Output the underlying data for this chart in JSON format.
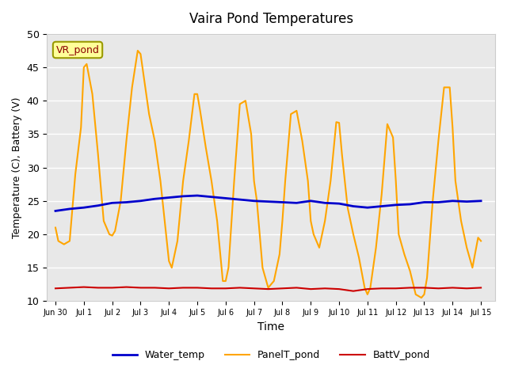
{
  "title": "Vaira Pond Temperatures",
  "xlabel": "Time",
  "ylabel": "Temperature (C), Battery (V)",
  "ylim": [
    10,
    50
  ],
  "xlim_days": 15.5,
  "background_color": "#e8e8e8",
  "legend_label": "VR_pond",
  "series": {
    "Water_temp": {
      "color": "#0000cc",
      "linewidth": 2.0
    },
    "PanelT_pond": {
      "color": "#FFA500",
      "linewidth": 1.5
    },
    "BattV_pond": {
      "color": "#cc0000",
      "linewidth": 1.5
    }
  },
  "water_temp_data": {
    "x": [
      0,
      0.5,
      1.0,
      1.5,
      2.0,
      2.5,
      3.0,
      3.5,
      4.0,
      4.5,
      5.0,
      5.5,
      6.0,
      6.5,
      7.0,
      7.5,
      8.0,
      8.5,
      9.0,
      9.5,
      10.0,
      10.5,
      11.0,
      11.5,
      12.0,
      12.5,
      13.0,
      13.5,
      14.0,
      14.5,
      15.0
    ],
    "y": [
      23.5,
      23.8,
      24.0,
      24.3,
      24.7,
      24.8,
      25.0,
      25.3,
      25.5,
      25.7,
      25.8,
      25.6,
      25.4,
      25.2,
      25.0,
      24.9,
      24.8,
      24.7,
      25.0,
      24.7,
      24.6,
      24.2,
      24.0,
      24.2,
      24.4,
      24.5,
      24.8,
      24.8,
      25.0,
      24.9,
      25.0
    ]
  },
  "panel_data": {
    "x": [
      0,
      0.1,
      0.3,
      0.5,
      0.7,
      0.9,
      1.0,
      1.1,
      1.3,
      1.5,
      1.7,
      1.9,
      2.0,
      2.1,
      2.3,
      2.5,
      2.7,
      2.9,
      3.0,
      3.1,
      3.3,
      3.5,
      3.7,
      3.9,
      4.0,
      4.1,
      4.3,
      4.5,
      4.7,
      4.9,
      5.0,
      5.1,
      5.3,
      5.5,
      5.7,
      5.9,
      6.0,
      6.1,
      6.3,
      6.5,
      6.7,
      6.9,
      7.0,
      7.1,
      7.3,
      7.5,
      7.7,
      7.9,
      8.0,
      8.1,
      8.3,
      8.5,
      8.7,
      8.9,
      9.0,
      9.1,
      9.3,
      9.5,
      9.7,
      9.9,
      10.0,
      10.1,
      10.3,
      10.5,
      10.7,
      10.9,
      11.0,
      11.1,
      11.3,
      11.5,
      11.7,
      11.9,
      12.0,
      12.1,
      12.3,
      12.5,
      12.7,
      12.9,
      13.0,
      13.1,
      13.3,
      13.5,
      13.7,
      13.9,
      14.0,
      14.1,
      14.3,
      14.5,
      14.7,
      14.9,
      15.0
    ],
    "y": [
      21.0,
      19.0,
      18.5,
      19.0,
      29.0,
      36.0,
      45.0,
      45.5,
      41.0,
      32.0,
      22.0,
      20.0,
      19.8,
      20.5,
      25.0,
      34.0,
      42.0,
      47.5,
      47.0,
      44.0,
      38.0,
      34.0,
      28.0,
      20.0,
      16.0,
      15.0,
      19.0,
      28.0,
      34.0,
      41.0,
      41.0,
      38.5,
      33.0,
      28.0,
      22.0,
      13.0,
      13.0,
      15.0,
      28.0,
      39.5,
      40.0,
      35.0,
      28.0,
      25.0,
      15.0,
      12.0,
      13.0,
      17.0,
      22.0,
      28.0,
      38.0,
      38.5,
      34.0,
      28.0,
      22.0,
      20.0,
      18.0,
      22.0,
      28.0,
      36.8,
      36.7,
      32.0,
      24.0,
      20.0,
      16.5,
      12.0,
      11.0,
      12.0,
      18.0,
      26.0,
      36.5,
      34.5,
      28.0,
      20.0,
      17.0,
      14.5,
      11.0,
      10.5,
      11.0,
      13.5,
      25.0,
      34.0,
      42.0,
      42.0,
      36.0,
      28.0,
      22.0,
      18.0,
      15.0,
      19.5,
      19.0
    ]
  },
  "batt_data": {
    "x": [
      0,
      0.5,
      1.0,
      1.5,
      2.0,
      2.5,
      3.0,
      3.5,
      4.0,
      4.5,
      5.0,
      5.5,
      6.0,
      6.5,
      7.0,
      7.5,
      8.0,
      8.5,
      9.0,
      9.5,
      10.0,
      10.5,
      11.0,
      11.5,
      12.0,
      12.5,
      13.0,
      13.5,
      14.0,
      14.5,
      15.0
    ],
    "y": [
      11.9,
      12.0,
      12.1,
      12.0,
      12.0,
      12.1,
      12.0,
      12.0,
      11.9,
      12.0,
      12.0,
      11.9,
      11.9,
      12.0,
      11.9,
      11.8,
      11.9,
      12.0,
      11.8,
      11.9,
      11.8,
      11.5,
      11.8,
      11.9,
      11.9,
      12.0,
      12.0,
      11.9,
      12.0,
      11.9,
      12.0
    ]
  },
  "xticks": {
    "positions": [
      0,
      1,
      2,
      3,
      4,
      5,
      6,
      7,
      8,
      9,
      10,
      11,
      12,
      13,
      14,
      15
    ],
    "labels": [
      "Jun 30",
      "Jul 1",
      "Jul 2",
      "Jul 3",
      "Jul 4",
      "Jul 5",
      "Jul 6",
      "Jul 7",
      "Jul 8",
      "Jul 9",
      "Jul 10",
      "Jul 11",
      "Jul 12",
      "Jul 13",
      "Jul 14",
      "Jul 15"
    ]
  },
  "yticks": [
    10,
    15,
    20,
    25,
    30,
    35,
    40,
    45,
    50
  ]
}
